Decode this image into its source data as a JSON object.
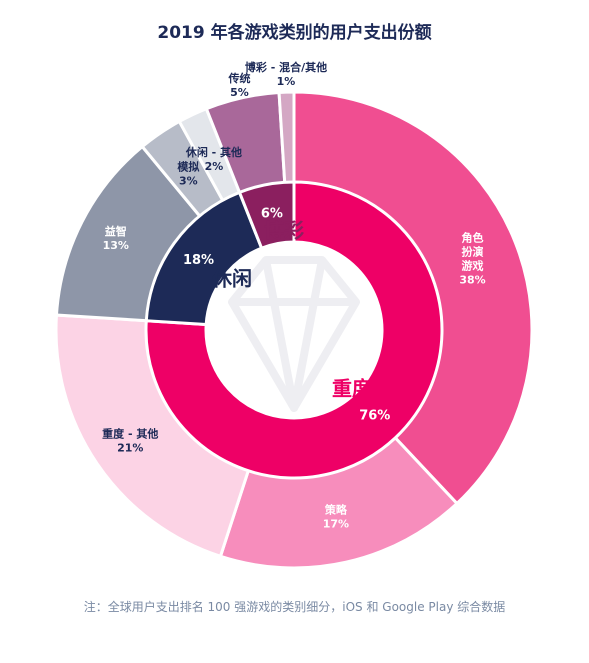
{
  "chart_data": {
    "type": "pie",
    "title": "2019 年各游戏类别的用户支出份额",
    "note": "注：全球用户支出排名 100 强游戏的类别细分，iOS 和 Google Play 综合数据",
    "inner": [
      {
        "name": "重度",
        "value": "76%",
        "pct": 76,
        "color": "#ee0066"
      },
      {
        "name": "休闲",
        "value": "18%",
        "pct": 18,
        "color": "#1d2a57"
      },
      {
        "name": "博彩",
        "value": "6%",
        "pct": 6,
        "color": "#8b1f5f"
      }
    ],
    "outer": [
      {
        "name": "角色扮演游戏",
        "lines": [
          "角色",
          "扮演",
          "游戏"
        ],
        "value": "38%",
        "pct": 38,
        "color": "#f04e91"
      },
      {
        "name": "策略",
        "lines": [
          "策略"
        ],
        "value": "17%",
        "pct": 17,
        "color": "#f78dbc"
      },
      {
        "name": "重度 - 其他",
        "lines": [
          "重度 - 其他"
        ],
        "value": "21%",
        "pct": 21,
        "color": "#fcd3e5"
      },
      {
        "name": "益智",
        "lines": [
          "益智"
        ],
        "value": "13%",
        "pct": 13,
        "color": "#8e96a8"
      },
      {
        "name": "模拟",
        "lines": [
          "模拟"
        ],
        "value": "3%",
        "pct": 3,
        "color": "#b7bcc8"
      },
      {
        "name": "休闲 - 其他",
        "lines": [
          "休闲 - 其他"
        ],
        "value": "2%",
        "pct": 2,
        "color": "#e3e6eb"
      },
      {
        "name": "传统",
        "lines": [
          "传统"
        ],
        "value": "5%",
        "pct": 5,
        "color": "#a9689a"
      },
      {
        "name": "博彩 - 混合/其他",
        "lines": [
          "博彩 - 混合/其他"
        ],
        "value": "1%",
        "pct": 1,
        "color": "#d4a7c4"
      }
    ]
  }
}
